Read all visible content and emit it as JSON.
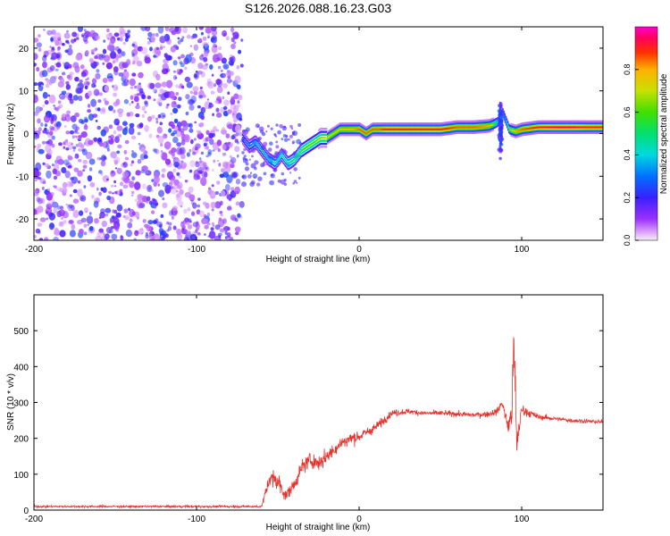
{
  "title": "S126.2026.088.16.23.G03",
  "chart_data": [
    {
      "type": "heatmap",
      "xlabel": "Height of straight line (km)",
      "ylabel": "Frequency (Hz)",
      "xlim": [
        -200,
        150
      ],
      "ylim": [
        -25,
        25
      ],
      "xticks": [
        -200,
        -100,
        0,
        100
      ],
      "yticks": [
        -20,
        -10,
        0,
        10,
        20
      ],
      "colorbar": {
        "label": "Normalized spectral amplitude",
        "range": [
          0,
          1
        ],
        "ticks": [
          "0.0",
          "0.2",
          "0.4",
          "0.6",
          "0.8"
        ]
      },
      "noise_region_x": [
        -200,
        -72
      ],
      "signal_trace": {
        "x": [
          -72,
          -68,
          -64,
          -60,
          -56,
          -52,
          -48,
          -44,
          -40,
          -36,
          -32,
          -28,
          -24,
          -20,
          -16,
          -12,
          -8,
          -4,
          0,
          4,
          8,
          12,
          16,
          20,
          30,
          40,
          50,
          60,
          70,
          80,
          84,
          86,
          88,
          90,
          92,
          96,
          100,
          110,
          120,
          130,
          140,
          150
        ],
        "y": [
          -1,
          -3,
          -2,
          -4,
          -6,
          -7,
          -5,
          -7,
          -6,
          -4,
          -3,
          -2,
          -1,
          -1,
          0,
          1,
          1,
          1,
          1,
          0,
          1,
          1,
          1,
          1,
          1,
          1,
          1,
          1.5,
          1.5,
          1.8,
          2.5,
          3,
          5,
          3,
          1,
          0.5,
          1,
          1.5,
          1.5,
          1.5,
          1.5,
          1.5
        ],
        "peak_amplitude": [
          0.25,
          0.3,
          0.35,
          0.35,
          0.35,
          0.4,
          0.4,
          0.45,
          0.5,
          0.55,
          0.6,
          0.6,
          0.65,
          0.7,
          0.75,
          0.75,
          0.8,
          0.8,
          0.85,
          0.85,
          0.85,
          0.85,
          0.9,
          0.9,
          0.9,
          0.9,
          0.9,
          0.85,
          0.85,
          0.8,
          0.5,
          0.4,
          0.3,
          0.4,
          0.6,
          0.8,
          0.85,
          0.9,
          0.95,
          0.95,
          0.9,
          0.9
        ]
      }
    },
    {
      "type": "line",
      "xlabel": "Height of straight line (km)",
      "ylabel": "SNR (10 * v/v)",
      "xlim": [
        -200,
        150
      ],
      "ylim": [
        0,
        600
      ],
      "xticks": [
        -200,
        -100,
        0,
        100
      ],
      "yticks": [
        0,
        100,
        200,
        300,
        400,
        500
      ],
      "color": "#e8312b",
      "envelope": {
        "x": [
          -200,
          -100,
          -60,
          -58,
          -55,
          -50,
          -45,
          -40,
          -35,
          -30,
          -25,
          -20,
          -15,
          -10,
          -5,
          0,
          10,
          20,
          30,
          40,
          50,
          60,
          70,
          80,
          85,
          88,
          90,
          92,
          94,
          95,
          96,
          97,
          98,
          100,
          105,
          110,
          120,
          130,
          140,
          150
        ],
        "y": [
          10,
          10,
          10,
          40,
          90,
          80,
          40,
          70,
          120,
          140,
          130,
          150,
          170,
          190,
          200,
          205,
          230,
          270,
          275,
          270,
          270,
          268,
          265,
          268,
          275,
          300,
          260,
          230,
          280,
          450,
          350,
          180,
          220,
          280,
          270,
          260,
          255,
          250,
          248,
          245
        ],
        "noise": [
          6,
          6,
          6,
          30,
          45,
          45,
          35,
          35,
          40,
          40,
          40,
          40,
          35,
          35,
          35,
          30,
          25,
          18,
          15,
          14,
          14,
          14,
          14,
          16,
          20,
          25,
          40,
          60,
          90,
          130,
          130,
          90,
          60,
          35,
          20,
          15,
          12,
          12,
          12,
          12
        ]
      }
    }
  ]
}
